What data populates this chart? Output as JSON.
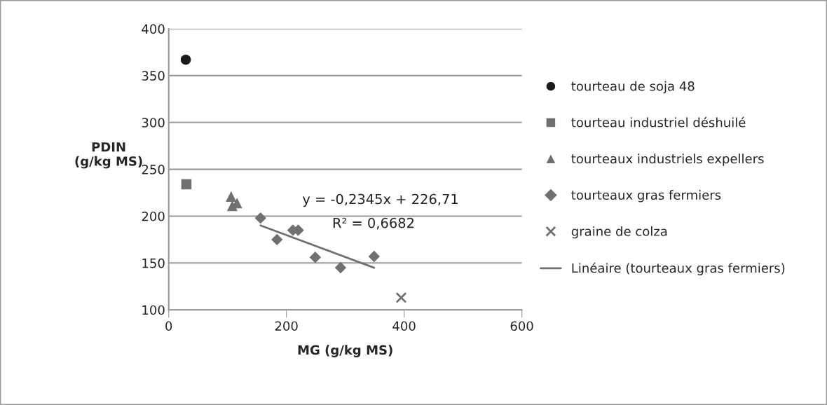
{
  "chart_data": {
    "type": "scatter",
    "xlabel": "MG (g/kg MS)",
    "ylabel": "PDIN\n(g/kg MS)",
    "xlim": [
      0,
      600
    ],
    "xticks": [
      0,
      200,
      400,
      600
    ],
    "ylim": [
      100,
      400
    ],
    "yticks": [
      100,
      150,
      200,
      250,
      300,
      350,
      400
    ],
    "grid": "y",
    "legend": "right",
    "series": [
      {
        "name": "tourteau de soja 48",
        "color": "#1a1a1a",
        "marker": "circle",
        "x": [
          29
        ],
        "values": [
          367
        ]
      },
      {
        "name": "tourteau industriel déshuilé",
        "color": "#707070",
        "marker": "square",
        "x": [
          30
        ],
        "values": [
          234
        ]
      },
      {
        "name": "tourteaux industriels expellers",
        "color": "#707070",
        "marker": "triangle",
        "x": [
          106,
          116,
          108
        ],
        "values": [
          221,
          214,
          211
        ]
      },
      {
        "name": "tourteaux gras fermiers",
        "color": "#707070",
        "marker": "diamond",
        "x": [
          156,
          184,
          211,
          220,
          249,
          292,
          349
        ],
        "values": [
          198,
          175,
          185,
          185,
          156,
          145,
          157
        ]
      },
      {
        "name": "graine de colza",
        "color": "#707070",
        "marker": "cross",
        "x": [
          395
        ],
        "values": [
          113
        ]
      },
      {
        "name": "Linéaire (tourteaux gras fermiers)",
        "type": "line",
        "color": "#707070",
        "marker": "none",
        "x": [
          156,
          349
        ],
        "values": [
          190.1,
          144.9
        ]
      }
    ],
    "annotations": [
      "y = -0,2345x + 226,71",
      "R² = 0,6682"
    ]
  }
}
